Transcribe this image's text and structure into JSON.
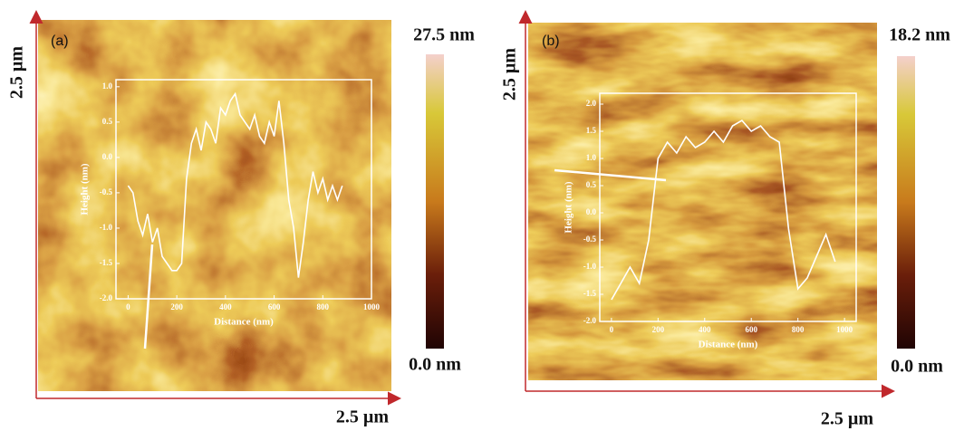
{
  "chart_data": [
    {
      "type": "line",
      "panel_label": "(a)",
      "colorbar_max_label": "27.5 nm",
      "colorbar_min_label": "0.0 nm",
      "scale_x_label": "2.5 µm",
      "scale_y_label": "2.5 µm",
      "x_label": "Distance (nm)",
      "y_label": "Height (nm)",
      "xlim": [
        -50,
        1000
      ],
      "ylim": [
        -2.0,
        1.1
      ],
      "xticks": [
        0,
        200,
        400,
        600,
        800,
        1000
      ],
      "yticks": [
        {
          "value": 1,
          "label": "1.0"
        },
        0.5,
        {
          "value": 0,
          "label": "0.0"
        },
        -0.5,
        {
          "value": -1,
          "label": "-1.0"
        },
        -1.5,
        {
          "value": -2,
          "label": "-2.0"
        }
      ],
      "series": [
        {
          "color": "#ffffff",
          "x": [
            0,
            20,
            40,
            60,
            80,
            100,
            120,
            140,
            160,
            180,
            200,
            220,
            240,
            260,
            280,
            300,
            320,
            340,
            360,
            380,
            400,
            420,
            440,
            460,
            480,
            500,
            520,
            540,
            560,
            580,
            600,
            620,
            640,
            660,
            680,
            700,
            720,
            740,
            760,
            780,
            800,
            820,
            840,
            860,
            880
          ],
          "values": [
            -0.4,
            -0.5,
            -0.9,
            -1.1,
            -0.8,
            -1.2,
            -1.0,
            -1.4,
            -1.5,
            -1.6,
            -1.6,
            -1.5,
            -0.3,
            0.2,
            0.4,
            0.1,
            0.5,
            0.4,
            0.2,
            0.7,
            0.6,
            0.8,
            0.9,
            0.6,
            0.5,
            0.4,
            0.6,
            0.3,
            0.2,
            0.5,
            0.3,
            0.8,
            0.2,
            -0.6,
            -1.0,
            -1.7,
            -1.2,
            -0.6,
            -0.2,
            -0.5,
            -0.3,
            -0.6,
            -0.4,
            -0.6,
            -0.4
          ]
        }
      ]
    },
    {
      "type": "line",
      "panel_label": "(b)",
      "colorbar_max_label": "18.2 nm",
      "colorbar_min_label": "0.0 nm",
      "scale_x_label": "2.5 µm",
      "scale_y_label": "2.5 µm",
      "x_label": "Distance (nm)",
      "y_label": "Height (nm)",
      "xlim": [
        -50,
        1050
      ],
      "ylim": [
        -2.0,
        2.2
      ],
      "xticks": [
        0,
        200,
        400,
        600,
        800,
        1000
      ],
      "yticks": [
        {
          "value": 2,
          "label": "2.0"
        },
        1.5,
        {
          "value": 1,
          "label": "1.0"
        },
        0.5,
        {
          "value": 0,
          "label": "0.0"
        },
        -0.5,
        {
          "value": -1,
          "label": "-1.0"
        },
        -1.5,
        {
          "value": -2,
          "label": "-2.0"
        }
      ],
      "series": [
        {
          "color": "#ffffff",
          "x": [
            0,
            40,
            80,
            120,
            160,
            200,
            240,
            280,
            320,
            360,
            400,
            440,
            480,
            520,
            560,
            600,
            640,
            680,
            720,
            760,
            800,
            840,
            880,
            920,
            960
          ],
          "values": [
            -1.6,
            -1.3,
            -1.0,
            -1.3,
            -0.5,
            1.0,
            1.3,
            1.1,
            1.4,
            1.2,
            1.3,
            1.5,
            1.3,
            1.6,
            1.7,
            1.5,
            1.6,
            1.4,
            1.3,
            -0.3,
            -1.4,
            -1.2,
            -0.8,
            -0.4,
            -0.9
          ]
        }
      ]
    }
  ]
}
